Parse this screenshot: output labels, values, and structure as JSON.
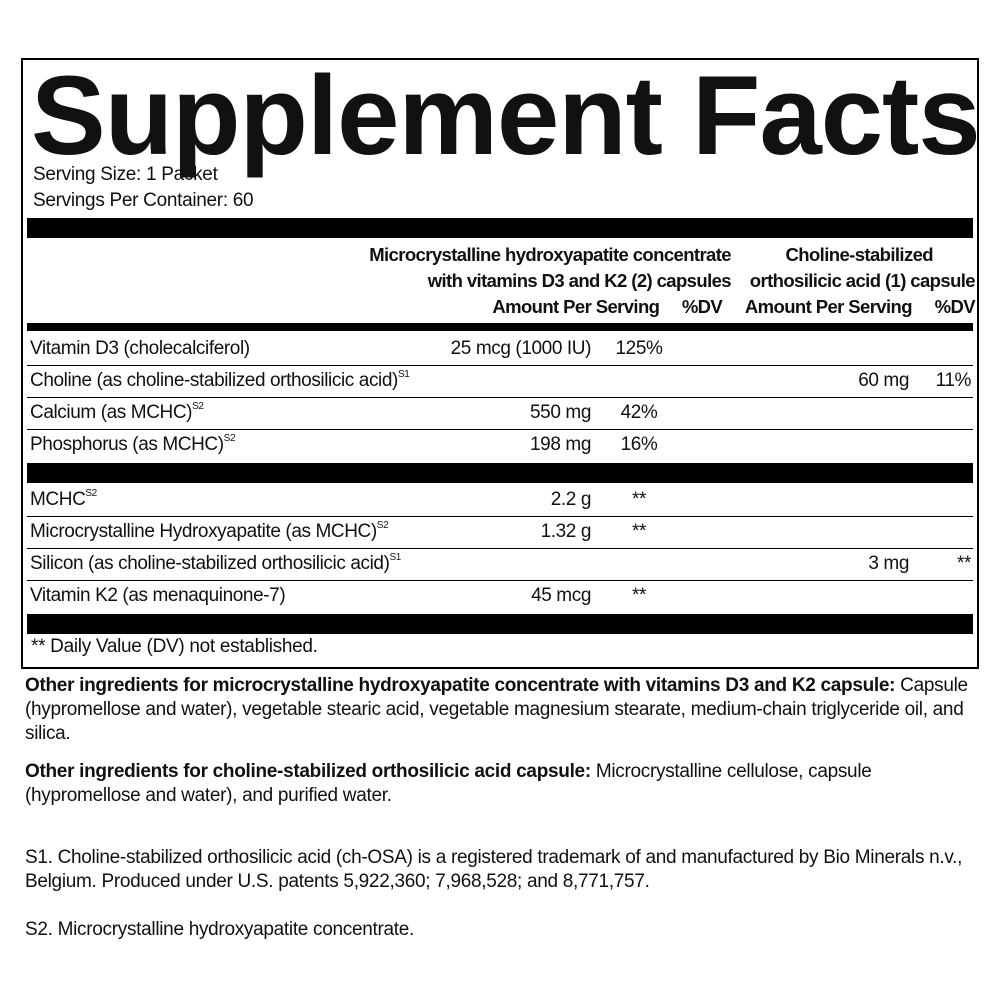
{
  "title": "Supplement Facts",
  "serving_size": "Serving Size: 1 Packet",
  "servings_per_container": "Servings Per Container: 60",
  "columns": {
    "col1_line1": "Microcrystalline hydroxyapatite concentrate",
    "col1_line2": "with vitamins D3 and K2 (2) capsules",
    "col2_line1": "Choline-stabilized",
    "col2_line2": "orthosilicic acid (1) capsule",
    "amount_label": "Amount Per Serving",
    "dv_label": "%DV"
  },
  "rows": [
    {
      "label": "Vitamin D3 (cholecalciferol)",
      "sup": "",
      "a1": "25 mcg (1000 IU)",
      "d1": "125%",
      "a2": "",
      "d2": ""
    },
    {
      "label": "Choline (as choline-stabilized orthosilicic acid)",
      "sup": "S1",
      "a1": "",
      "d1": "",
      "a2": "60 mg",
      "d2": "11%"
    },
    {
      "label": "Calcium (as MCHC)",
      "sup": "S2",
      "a1": "550 mg",
      "d1": "42%",
      "a2": "",
      "d2": ""
    },
    {
      "label": "Phosphorus (as MCHC)",
      "sup": "S2",
      "a1": "198 mg",
      "d1": "16%",
      "a2": "",
      "d2": ""
    },
    {
      "label": "MCHC",
      "sup": "S2",
      "a1": "2.2 g",
      "d1": "**",
      "a2": "",
      "d2": ""
    },
    {
      "label": "Microcrystalline Hydroxyapatite (as MCHC)",
      "sup": "S2",
      "a1": "1.32 g",
      "d1": "**",
      "a2": "",
      "d2": ""
    },
    {
      "label": "Silicon (as choline-stabilized orthosilicic acid)",
      "sup": "S1",
      "a1": "",
      "d1": "",
      "a2": "3 mg",
      "d2": "**"
    },
    {
      "label": "Vitamin K2 (as menaquinone-7)",
      "sup": "",
      "a1": "45 mcg",
      "d1": "**",
      "a2": "",
      "d2": ""
    }
  ],
  "footnote": "** Daily Value (DV) not established.",
  "other1_bold": "Other ingredients for microcrystalline hydroxyapatite concentrate with vitamins D3 and K2 capsule:",
  "other1_text": " Capsule (hypromellose and water), vegetable stearic acid, vegetable magnesium stearate, medium-chain triglyceride oil, and silica.",
  "other2_bold": "Other ingredients for choline-stabilized orthosilicic acid capsule:",
  "other2_text": " Microcrystalline cellulose, capsule (hypromellose and water), and purified water.",
  "s1": "S1. Choline-stabilized orthosilicic acid (ch-OSA) is a registered trademark of and manufactured by Bio Minerals n.v., Belgium. Produced under U.S. patents 5,922,360; 7,968,528; and 8,771,757.",
  "s2": "S2. Microcrystalline hydroxyapatite concentrate."
}
